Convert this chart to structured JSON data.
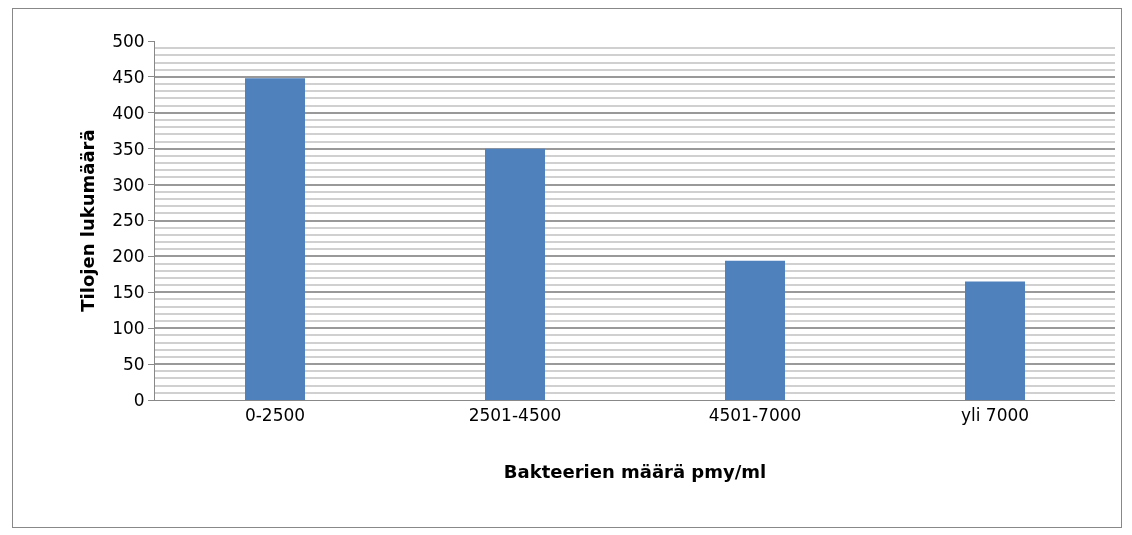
{
  "chart_data": {
    "type": "bar",
    "xlabel": "Bakteerien määrä pmy/ml",
    "ylabel": "Tilojen lukumäärä",
    "categories": [
      "0-2500",
      "2501-4500",
      "4501-7000",
      "yli 7000"
    ],
    "values": [
      448,
      350,
      194,
      165
    ],
    "color": "#4f81bd",
    "ylim": [
      0,
      500
    ],
    "yticks": [
      0,
      {
        "value": 10,
        "label": null
      },
      {
        "value": 20,
        "label": null
      },
      {
        "value": 30,
        "label": null
      },
      {
        "value": 40,
        "label": null
      },
      50,
      {
        "value": 60,
        "label": null
      },
      {
        "value": 70,
        "label": null
      },
      {
        "value": 80,
        "label": null
      },
      {
        "value": 90,
        "label": null
      },
      100,
      {
        "value": 110,
        "label": null
      },
      {
        "value": 120,
        "label": null
      },
      {
        "value": 130,
        "label": null
      },
      {
        "value": 140,
        "label": null
      },
      150,
      {
        "value": 160,
        "label": null
      },
      {
        "value": 170,
        "label": null
      },
      {
        "value": 180,
        "label": null
      },
      {
        "value": 190,
        "label": null
      },
      200,
      {
        "value": 210,
        "label": null
      },
      {
        "value": 220,
        "label": null
      },
      {
        "value": 230,
        "label": null
      },
      {
        "value": 240,
        "label": null
      },
      250,
      {
        "value": 260,
        "label": null
      },
      {
        "value": 270,
        "label": null
      },
      {
        "value": 280,
        "label": null
      },
      {
        "value": 290,
        "label": null
      },
      300,
      {
        "value": 310,
        "label": null
      },
      {
        "value": 320,
        "label": null
      },
      {
        "value": 330,
        "label": null
      },
      {
        "value": 340,
        "label": null
      },
      350,
      {
        "value": 360,
        "label": null
      },
      {
        "value": 370,
        "label": null
      },
      {
        "value": 380,
        "label": null
      },
      {
        "value": 390,
        "label": null
      },
      400,
      {
        "value": 410,
        "label": null
      },
      {
        "value": 420,
        "label": null
      },
      {
        "value": 430,
        "label": null
      },
      {
        "value": 440,
        "label": null
      },
      450,
      {
        "value": 460,
        "label": null
      },
      {
        "value": 470,
        "label": null
      },
      {
        "value": 480,
        "label": null
      },
      {
        "value": 490,
        "label": null
      },
      500
    ],
    "grid": "y",
    "legend": false
  }
}
